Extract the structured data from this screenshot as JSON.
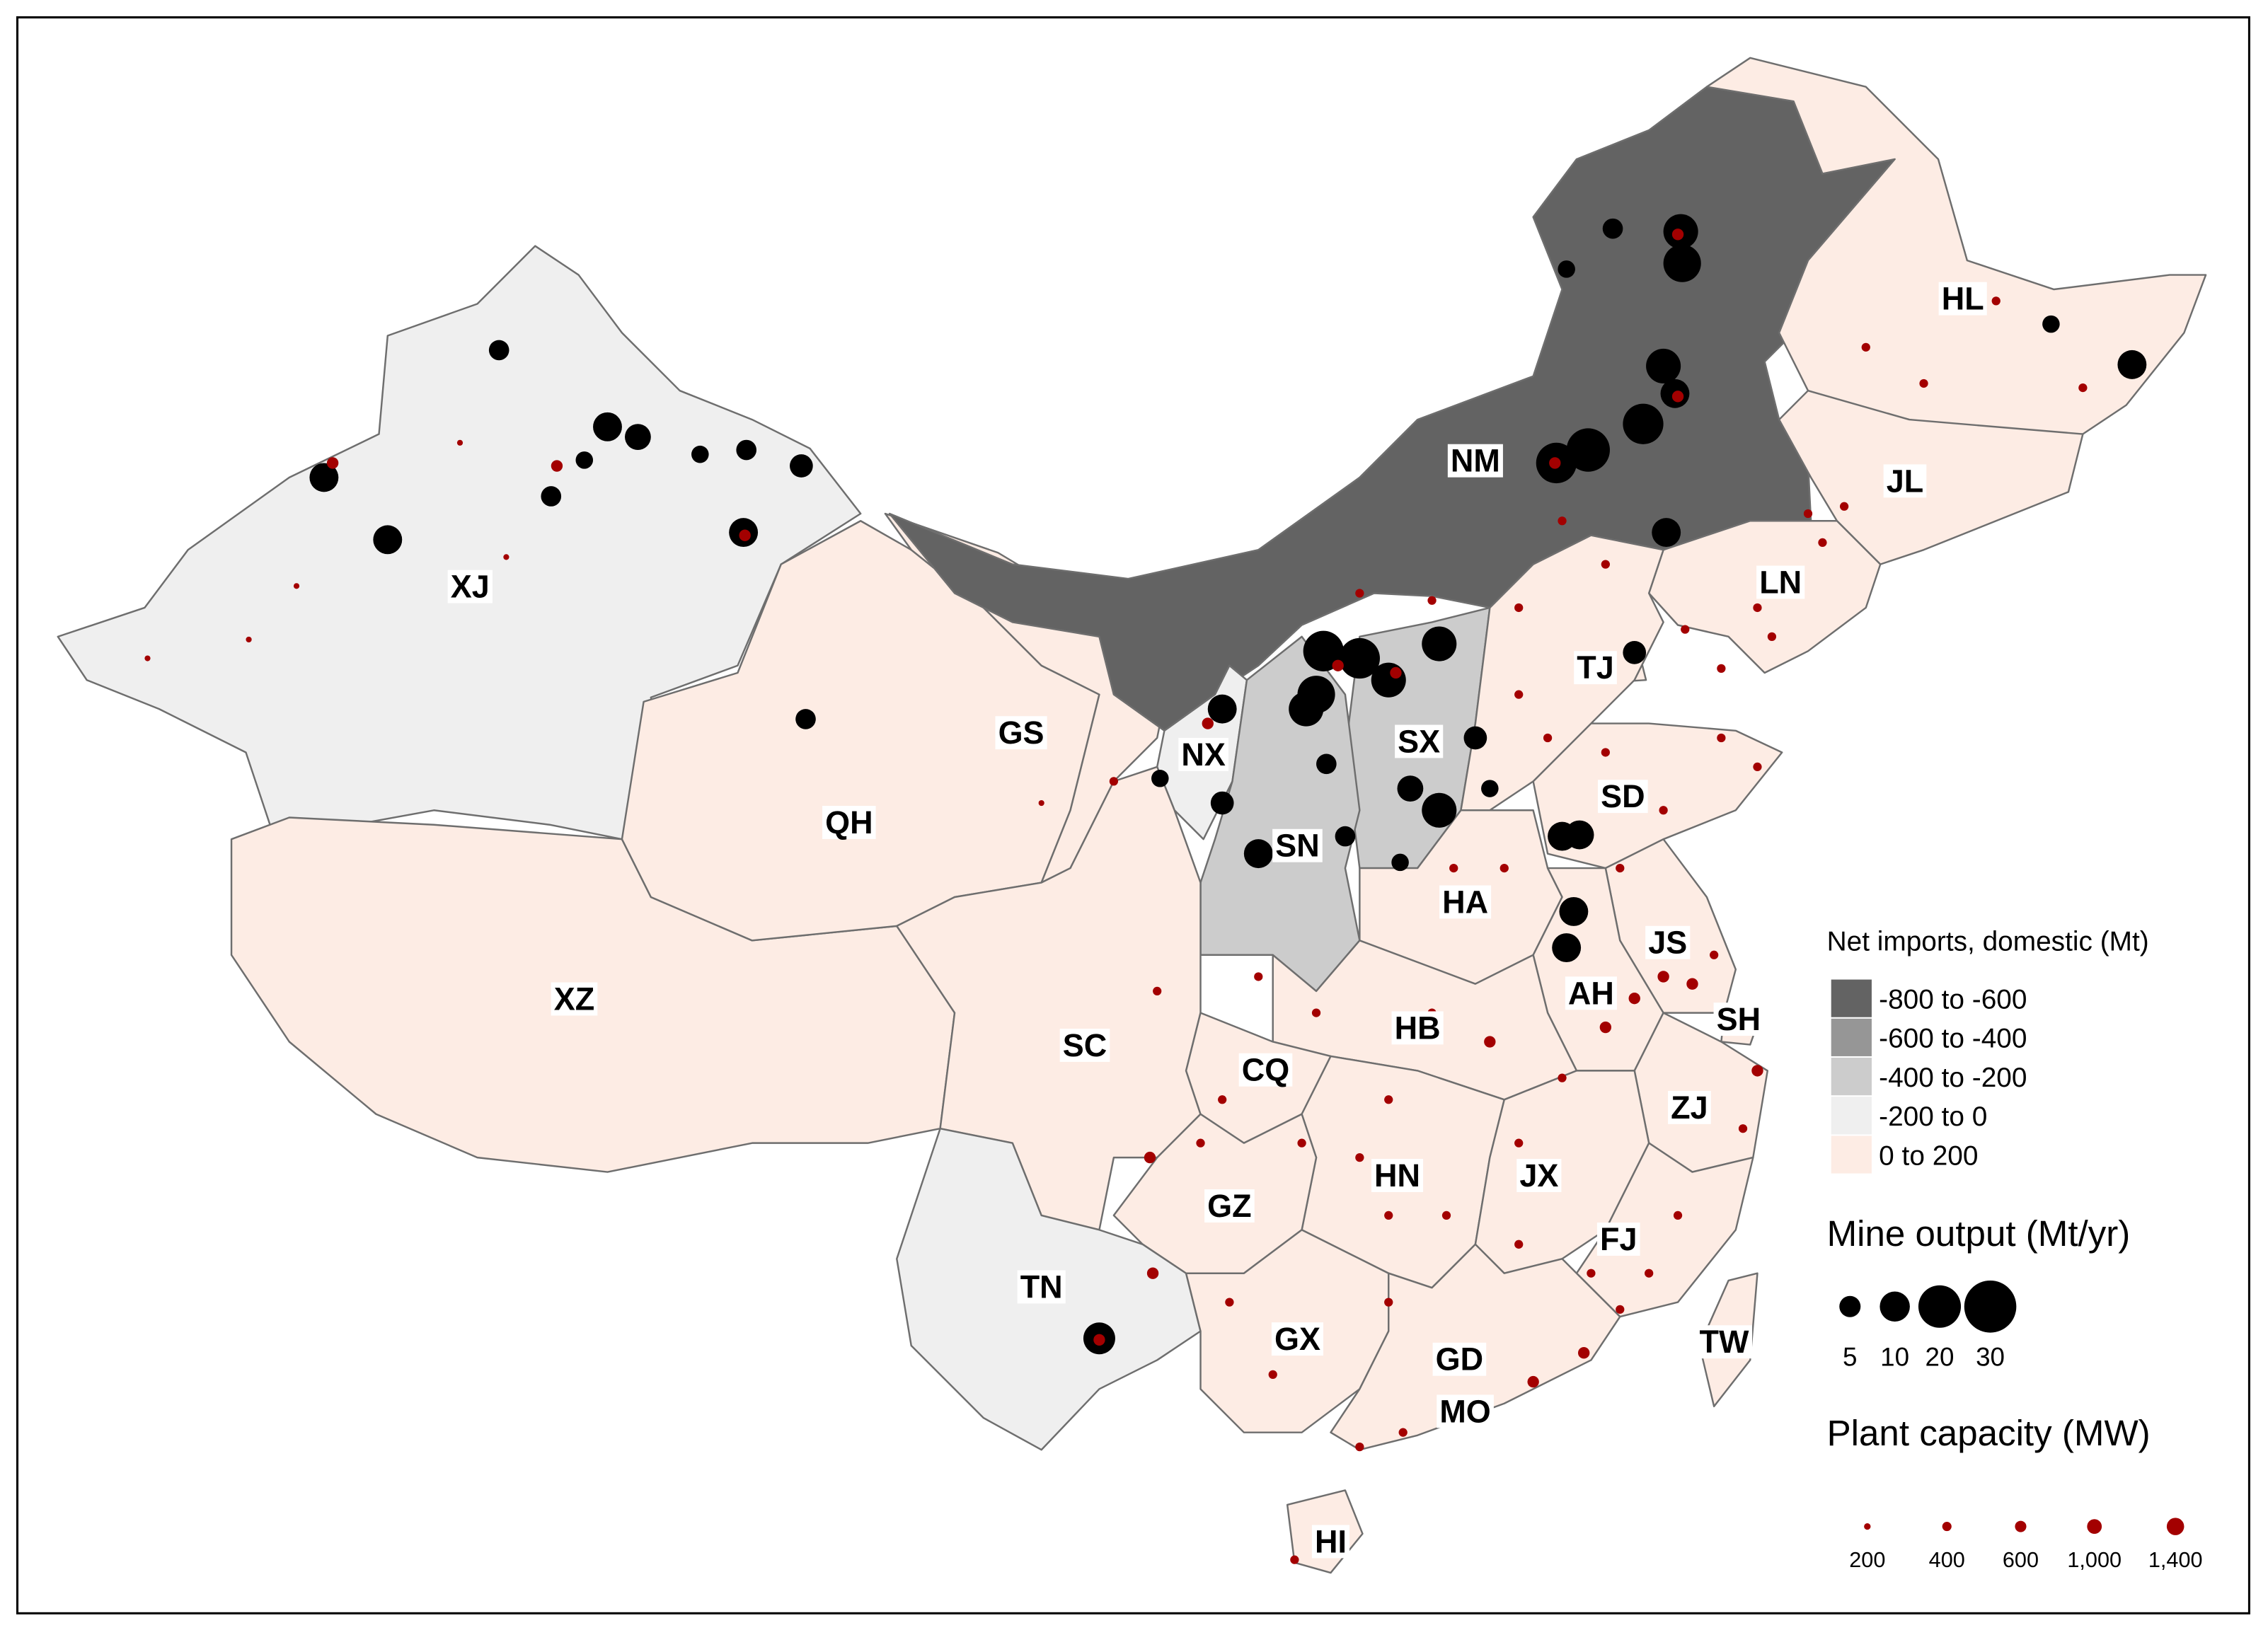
{
  "provinces": [
    {
      "label": "XJ",
      "color": "#efefef"
    },
    {
      "label": "XZ",
      "color": "#fdece4"
    },
    {
      "label": "QH",
      "color": "#fdece4"
    },
    {
      "label": "GS",
      "color": "#fdece4"
    },
    {
      "label": "NM",
      "color": "#636363"
    },
    {
      "label": "HL",
      "color": "#fdece4"
    },
    {
      "label": "JL",
      "color": "#fdece4"
    },
    {
      "label": "LN",
      "color": "#fdece4"
    },
    {
      "label": "TJ",
      "color": "#fdece4"
    },
    {
      "label": "NX",
      "color": "#efefef"
    },
    {
      "label": "SX",
      "color": "#cccccc"
    },
    {
      "label": "SD",
      "color": "#fdece4"
    },
    {
      "label": "SN",
      "color": "#cccccc"
    },
    {
      "label": "HA",
      "color": "#fdece4"
    },
    {
      "label": "JS",
      "color": "#fdece4"
    },
    {
      "label": "AH",
      "color": "#fdece4"
    },
    {
      "label": "SH",
      "color": "#fdece4"
    },
    {
      "label": "HB",
      "color": "#fdece4"
    },
    {
      "label": "SC",
      "color": "#fdece4"
    },
    {
      "label": "CQ",
      "color": "#fdece4"
    },
    {
      "label": "ZJ",
      "color": "#fdece4"
    },
    {
      "label": "HN",
      "color": "#fdece4"
    },
    {
      "label": "JX",
      "color": "#fdece4"
    },
    {
      "label": "GZ",
      "color": "#fdece4"
    },
    {
      "label": "FJ",
      "color": "#fdece4"
    },
    {
      "label": "TN",
      "color": "#efefef"
    },
    {
      "label": "GX",
      "color": "#fdece4"
    },
    {
      "label": "GD",
      "color": "#fdece4"
    },
    {
      "label": "TW",
      "color": "#fdece4"
    },
    {
      "label": "MO",
      "color": "#fdece4"
    },
    {
      "label": "HI",
      "color": "#fdece4"
    }
  ],
  "legend": {
    "fill_title": "Net imports, domestic (Mt)",
    "fill_items": [
      {
        "label": "-800 to -600",
        "color": "#636363"
      },
      {
        "label": "-600 to -400",
        "color": "#969696"
      },
      {
        "label": "-400 to -200",
        "color": "#cccccc"
      },
      {
        "label": "-200 to 0",
        "color": "#efefef"
      },
      {
        "label": "0 to 200",
        "color": "#fdece4"
      }
    ],
    "mine_title": "Mine output (Mt/yr)",
    "mine_sizes": [
      5,
      10,
      20,
      30
    ],
    "mine_color": "#000000",
    "plant_title": "Plant capacity (MW)",
    "plant_sizes": [
      200,
      400,
      600,
      {
        "value": 1000,
        "label": "1,000"
      },
      {
        "value": 1400,
        "label": "1,400"
      }
    ],
    "plant_color": "#a30000"
  }
}
